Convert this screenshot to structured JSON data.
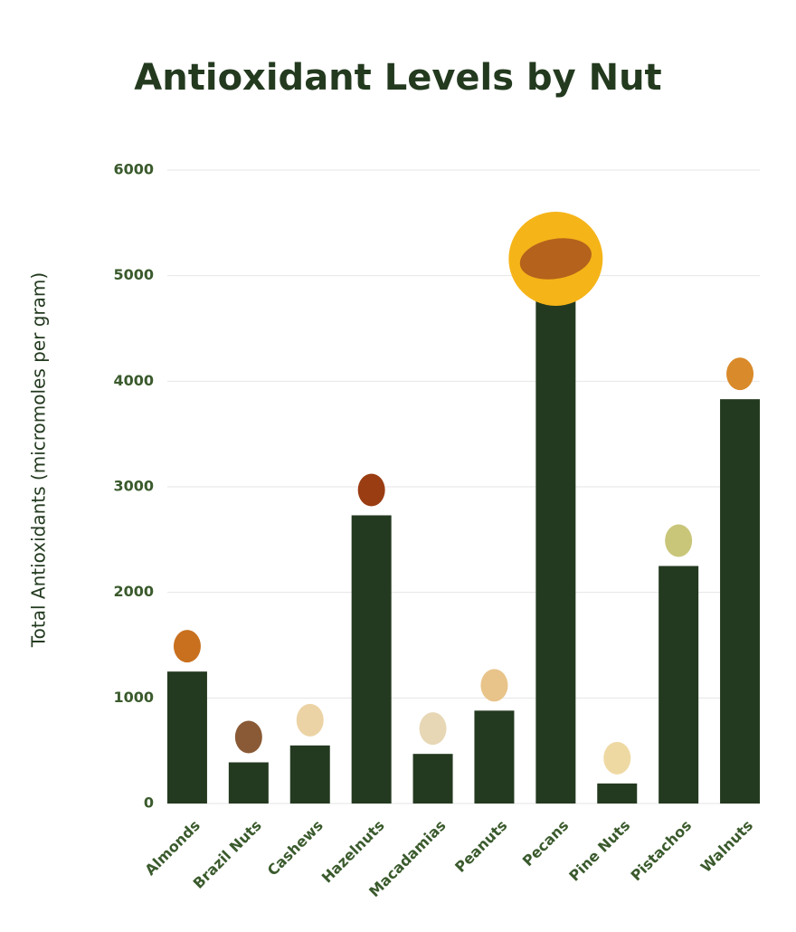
{
  "chart_data": {
    "type": "bar",
    "title": "Antioxidant Levels by Nut",
    "y_label": "Total Antioxidants (micromoles per gram)",
    "categories": [
      "Almonds",
      "Brazil Nuts",
      "Cashews",
      "Hazelnuts",
      "Macadamias",
      "Peanuts",
      "Pecans",
      "Pine Nuts",
      "Pistachos",
      "Walnuts"
    ],
    "values": [
      1250,
      390,
      550,
      2730,
      470,
      880,
      5100,
      190,
      2250,
      3830
    ],
    "color": "#243a20",
    "ylim": [
      0,
      6000
    ],
    "yticks": [
      0,
      1000,
      2000,
      3000,
      4000,
      5000,
      6000
    ],
    "grid": true
  }
}
